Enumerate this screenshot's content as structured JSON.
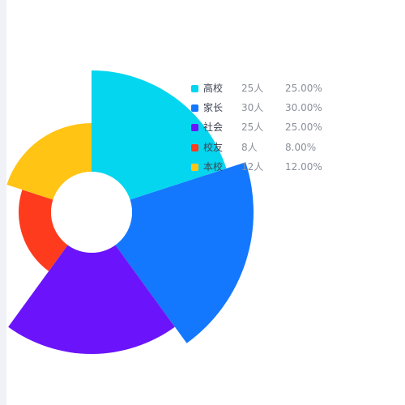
{
  "chart_data": {
    "type": "pie",
    "subtype": "rose",
    "series": [
      {
        "name": "高校",
        "value": 25,
        "value_label": "25人",
        "percent": "25.00%",
        "color": "#05d6ef"
      },
      {
        "name": "家长",
        "value": 30,
        "value_label": "30人",
        "percent": "30.00%",
        "color": "#1478ff"
      },
      {
        "name": "社会",
        "value": 25,
        "value_label": "25人",
        "percent": "25.00%",
        "color": "#6b14fb"
      },
      {
        "name": "校友",
        "value": 8,
        "value_label": "8人",
        "percent": "8.00%",
        "color": "#ff3b1e"
      },
      {
        "name": "本校",
        "value": 12,
        "value_label": "12人",
        "percent": "12.00%",
        "color": "#ffc414"
      }
    ],
    "legend_position": "top-right"
  }
}
